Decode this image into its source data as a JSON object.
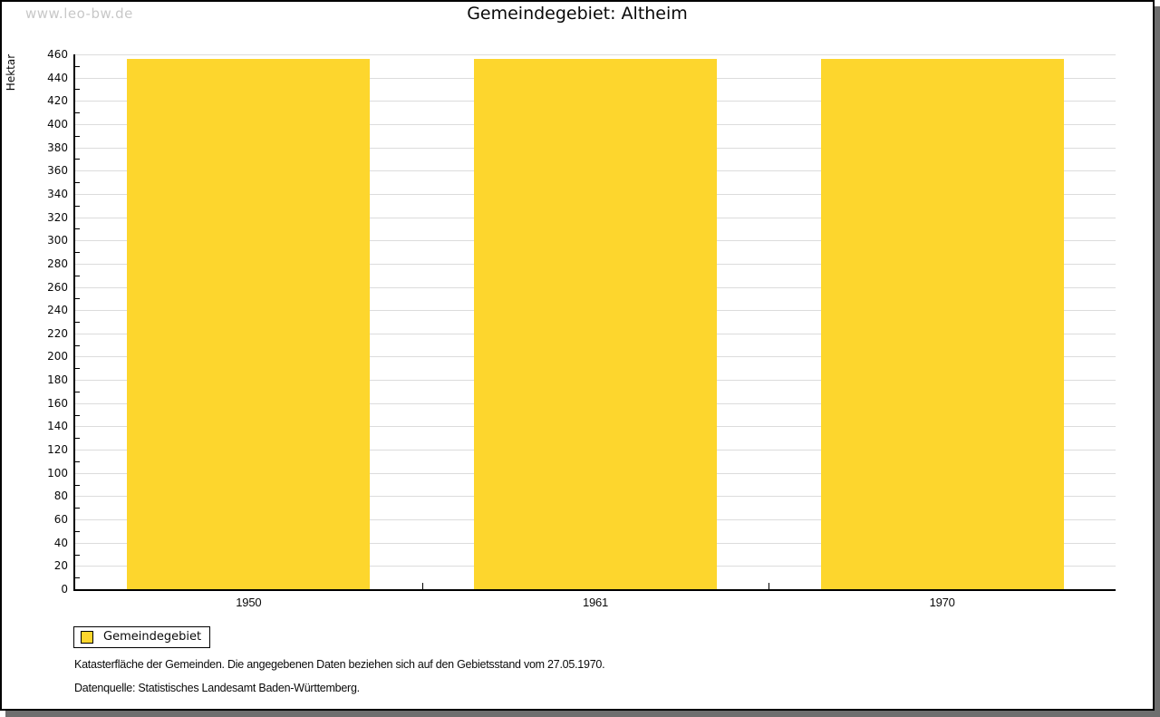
{
  "page": {
    "watermark": "www.leo-bw.de",
    "title": "Gemeindegebiet:  Altheim"
  },
  "chart_data": {
    "type": "bar",
    "title": "Gemeindegebiet: Altheim",
    "categories": [
      "1950",
      "1961",
      "1970"
    ],
    "series": [
      {
        "name": "Gemeindegebiet",
        "values": [
          456,
          456,
          456
        ]
      }
    ],
    "xlabel": "",
    "ylabel": "Hektar",
    "ylim": [
      0,
      460
    ],
    "ytick_step": 20,
    "ytick_minor_step": 10,
    "grid": "horizontal-major",
    "legend_position": "bottom-left"
  },
  "legend": {
    "items": [
      {
        "label": "Gemeindegebiet",
        "color": "#FDD62D"
      }
    ]
  },
  "footnotes": [
    "Katasterfläche der Gemeinden. Die angegebenen Daten beziehen sich auf den Gebietsstand vom 27.05.1970.",
    "Datenquelle: Statistisches Landesamt Baden-Württemberg."
  ],
  "colors": {
    "bar": "#FDD62D",
    "grid": "#DCDCDC",
    "axis": "#000000",
    "watermark": "#C8C8C8",
    "shadow": "#6E6E6E",
    "background": "#FFFFFF"
  }
}
